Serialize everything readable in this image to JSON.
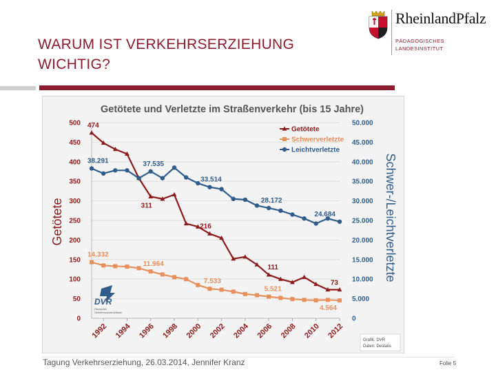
{
  "slide": {
    "title": "WARUM IST VERKEHRSERZIEHUNG WICHTIG?",
    "footer": "Tagung Verkehrserziehung, 26.03.2014, Jennifer Kranz",
    "page": "Folie 5"
  },
  "logo": {
    "name": "RheinlandPfalz",
    "sub_line1": "PÄDAGOGISCHES",
    "sub_line2": "LANDESINSTITUT"
  },
  "colors": {
    "title": "#8a1c2e",
    "accent_bar": "#8a1c2e",
    "getoetete": "#8b1a1a",
    "schwer": "#e8905c",
    "leicht": "#2f5c8a",
    "frame_bg": "#f3f3f3"
  },
  "chart_data": {
    "type": "line",
    "title": "Getötete und Verletzte im Straßenverkehr (bis 15 Jahre)",
    "ylabel_left": "Getötete",
    "ylabel_right": "Schwer-/Leichtverletzte",
    "ylim_left": [
      0,
      500
    ],
    "ylim_right": [
      0,
      50000
    ],
    "yticks_left": [
      "0",
      "50",
      "100",
      "150",
      "200",
      "250",
      "300",
      "350",
      "400",
      "450",
      "500"
    ],
    "yticks_right": [
      "0",
      "5.000",
      "10.000",
      "15.000",
      "20.000",
      "25.000",
      "30.000",
      "35.000",
      "40.000",
      "45.000",
      "50.000"
    ],
    "x": [
      1991,
      1992,
      1993,
      1994,
      1995,
      1996,
      1997,
      1998,
      1999,
      2000,
      2001,
      2002,
      2003,
      2004,
      2005,
      2006,
      2007,
      2008,
      2009,
      2010,
      2011,
      2012
    ],
    "xticks": [
      "1992",
      "1994",
      "1996",
      "1998",
      "2000",
      "2002",
      "2004",
      "2006",
      "2008",
      "2010",
      "2012"
    ],
    "series": [
      {
        "name": "Getötete",
        "axis": "left",
        "values": [
          474,
          448,
          432,
          420,
          358,
          311,
          305,
          316,
          242,
          234,
          216,
          205,
          152,
          157,
          137,
          111,
          100,
          92,
          105,
          87,
          73,
          73
        ]
      },
      {
        "name": "Schwerverletzte",
        "axis": "right",
        "values": [
          14332,
          13500,
          13300,
          13200,
          12800,
          11964,
          11200,
          10500,
          10000,
          8500,
          7533,
          7300,
          6800,
          6200,
          5900,
          5521,
          5200,
          4900,
          4700,
          4600,
          4700,
          4564
        ]
      },
      {
        "name": "Leichtverletzte",
        "axis": "right",
        "values": [
          38291,
          37000,
          37800,
          37800,
          35800,
          37535,
          35800,
          38500,
          36000,
          34500,
          33514,
          33000,
          30500,
          30300,
          28800,
          28172,
          27500,
          26500,
          25500,
          24200,
          25500,
          24684
        ]
      }
    ],
    "annotations": [
      {
        "series": "Getötete",
        "x": 1991,
        "text": "474"
      },
      {
        "series": "Getötete",
        "x": 1996,
        "text": "311"
      },
      {
        "series": "Getötete",
        "x": 2001,
        "text": "216"
      },
      {
        "series": "Getötete",
        "x": 2006,
        "text": "111"
      },
      {
        "series": "Getötete",
        "x": 2012,
        "text": "73"
      },
      {
        "series": "Leichtverletzte",
        "x": 1991,
        "text": "38.291"
      },
      {
        "series": "Leichtverletzte",
        "x": 1996,
        "text": "37.535"
      },
      {
        "series": "Leichtverletzte",
        "x": 2001,
        "text": "33.514"
      },
      {
        "series": "Leichtverletzte",
        "x": 2006,
        "text": "28.172"
      },
      {
        "series": "Leichtverletzte",
        "x": 2012,
        "text": "24.684"
      },
      {
        "series": "Schwerverletzte",
        "x": 1991,
        "text": "14.332"
      },
      {
        "series": "Schwerverletzte",
        "x": 1996,
        "text": "11.964"
      },
      {
        "series": "Schwerverletzte",
        "x": 2001,
        "text": "7.533"
      },
      {
        "series": "Schwerverletzte",
        "x": 2006,
        "text": "5.521"
      },
      {
        "series": "Schwerverletzte",
        "x": 2012,
        "text": "4.564"
      }
    ],
    "legend": [
      "Getötete",
      "Schwerverletzte",
      "Leichtverletzte"
    ],
    "legend_position": "top-right",
    "source_line1": "Grafik: DVR",
    "source_line2": "Daten: Destatis",
    "logo_text": "DVR",
    "logo_subtext1": "Deutscher",
    "logo_subtext2": "Verkehrssicherheitsrat"
  }
}
